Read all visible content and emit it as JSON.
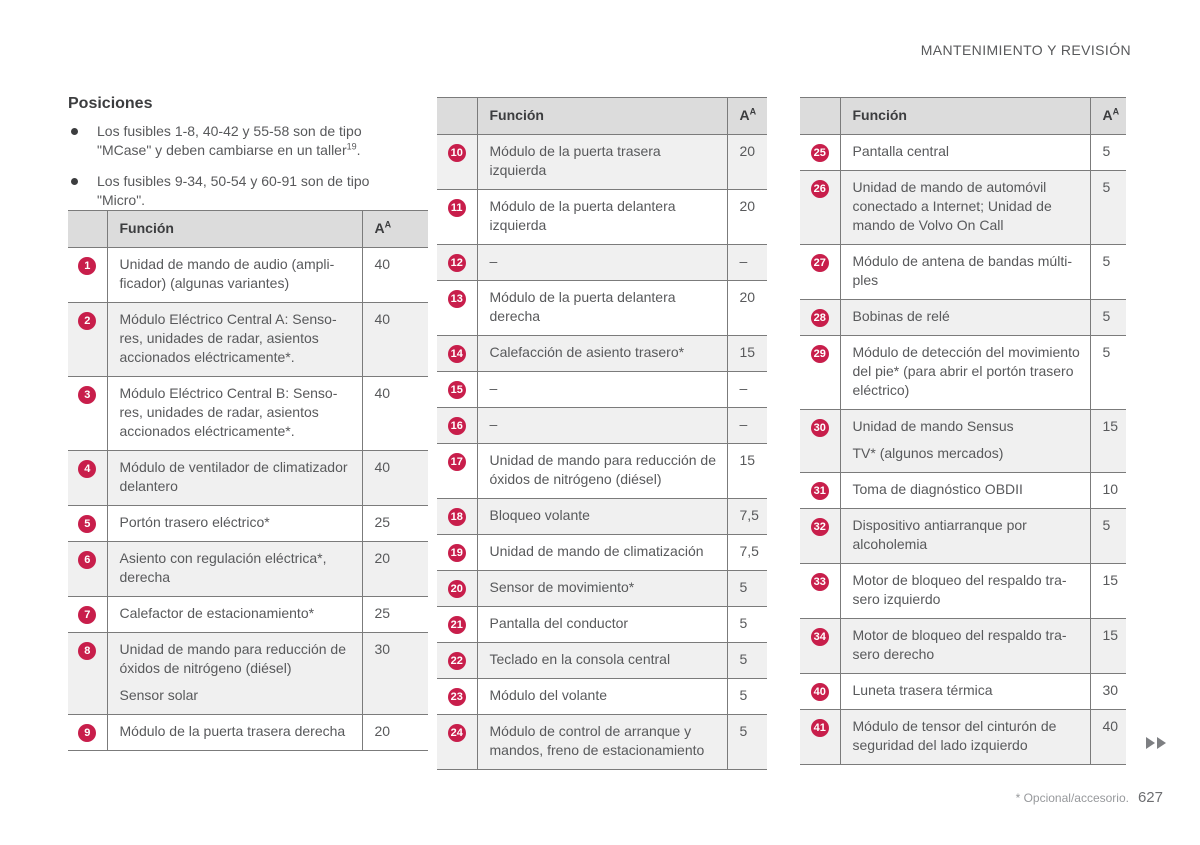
{
  "header": {
    "title": "MANTENIMIENTO Y REVISIÓN"
  },
  "intro": {
    "title": "Posiciones",
    "bullets": [
      {
        "text": "Los fusibles 1-8, 40-42 y 55-58 son de tipo \"MCase\" y deben cambiarse en un taller",
        "sup": "19",
        "suffix": "."
      },
      {
        "text": "Los fusibles 9-34, 50-54 y 60-91 son de tipo \"Micro\".",
        "sup": "",
        "suffix": ""
      }
    ]
  },
  "columns": {
    "funcion": "Función",
    "amp_letter": "A",
    "amp_sup": "A"
  },
  "tables": [
    {
      "altFirst": false,
      "rows": [
        {
          "num": "1",
          "paras": [
            "Unidad de mando de audio (ampli­ficador) (algunas variantes)"
          ],
          "amp": "40"
        },
        {
          "num": "2",
          "paras": [
            "Módulo Eléctrico Central A: Senso­res, unidades de radar, asientos accionados eléctricamente*."
          ],
          "amp": "40"
        },
        {
          "num": "3",
          "paras": [
            "Módulo Eléctrico Central B: Senso­res, unidades de radar, asientos accionados eléctricamente*."
          ],
          "amp": "40"
        },
        {
          "num": "4",
          "paras": [
            "Módulo de ventilador de climatiza­dor delantero"
          ],
          "amp": "40"
        },
        {
          "num": "5",
          "paras": [
            "Portón trasero eléctrico*"
          ],
          "amp": "25"
        },
        {
          "num": "6",
          "paras": [
            "Asiento con regulación eléctrica*, derecha"
          ],
          "amp": "20"
        },
        {
          "num": "7",
          "paras": [
            "Calefactor de estacionamiento*"
          ],
          "amp": "25"
        },
        {
          "num": "8",
          "paras": [
            "Unidad de mando para reducción de óxidos de nitrógeno (diésel)",
            "Sensor solar"
          ],
          "amp": "30"
        },
        {
          "num": "9",
          "paras": [
            "Módulo de la puerta trasera dere­cha"
          ],
          "amp": "20"
        }
      ]
    },
    {
      "altFirst": true,
      "rows": [
        {
          "num": "10",
          "paras": [
            "Módulo de la puerta trasera izquierda"
          ],
          "amp": "20"
        },
        {
          "num": "11",
          "paras": [
            "Módulo de la puerta delantera izquierda"
          ],
          "amp": "20"
        },
        {
          "num": "12",
          "paras": [
            "–"
          ],
          "amp": "–"
        },
        {
          "num": "13",
          "paras": [
            "Módulo de la puerta delantera derecha"
          ],
          "amp": "20"
        },
        {
          "num": "14",
          "paras": [
            "Calefacción de asiento trasero*"
          ],
          "amp": "15"
        },
        {
          "num": "15",
          "paras": [
            "–"
          ],
          "amp": "–"
        },
        {
          "num": "16",
          "paras": [
            "–"
          ],
          "amp": "–"
        },
        {
          "num": "17",
          "paras": [
            "Unidad de mando para reducción de óxidos de nitrógeno (diésel)"
          ],
          "amp": "15"
        },
        {
          "num": "18",
          "paras": [
            "Bloqueo volante"
          ],
          "amp": "7,5"
        },
        {
          "num": "19",
          "paras": [
            "Unidad de mando de climatización"
          ],
          "amp": "7,5"
        },
        {
          "num": "20",
          "paras": [
            "Sensor de movimiento*"
          ],
          "amp": "5"
        },
        {
          "num": "21",
          "paras": [
            "Pantalla del conductor"
          ],
          "amp": "5"
        },
        {
          "num": "22",
          "paras": [
            "Teclado en la consola central"
          ],
          "amp": "5"
        },
        {
          "num": "23",
          "paras": [
            "Módulo del volante"
          ],
          "amp": "5"
        },
        {
          "num": "24",
          "paras": [
            "Módulo de control de arranque y mandos, freno de estacionamiento"
          ],
          "amp": "5"
        }
      ]
    },
    {
      "altFirst": false,
      "rows": [
        {
          "num": "25",
          "paras": [
            "Pantalla central"
          ],
          "amp": "5"
        },
        {
          "num": "26",
          "paras": [
            "Unidad de mando de automóvil conectado a Internet; Unidad de mando de Volvo On Call"
          ],
          "amp": "5"
        },
        {
          "num": "27",
          "paras": [
            "Módulo de antena de bandas múlti­ples"
          ],
          "amp": "5"
        },
        {
          "num": "28",
          "paras": [
            "Bobinas de relé"
          ],
          "amp": "5"
        },
        {
          "num": "29",
          "paras": [
            "Módulo de detección del movi­miento del pie* (para abrir el portón trasero eléctrico)"
          ],
          "amp": "5"
        },
        {
          "num": "30",
          "paras": [
            "Unidad de mando Sensus",
            "TV* (algunos mercados)"
          ],
          "amp": "15"
        },
        {
          "num": "31",
          "paras": [
            "Toma de diagnóstico OBDII"
          ],
          "amp": "10"
        },
        {
          "num": "32",
          "paras": [
            "Dispositivo antiarranque por alcoholemia"
          ],
          "amp": "5"
        },
        {
          "num": "33",
          "paras": [
            "Motor de bloqueo del respaldo tra­sero izquierdo"
          ],
          "amp": "15"
        },
        {
          "num": "34",
          "paras": [
            "Motor de bloqueo del respaldo tra­sero derecho"
          ],
          "amp": "15"
        },
        {
          "num": "40",
          "paras": [
            "Luneta trasera térmica"
          ],
          "amp": "30"
        },
        {
          "num": "41",
          "paras": [
            "Módulo de tensor del cinturón de seguridad del lado izquierdo"
          ],
          "amp": "40"
        }
      ]
    }
  ],
  "footer": {
    "note": "* Opcional/accesorio.",
    "page": "627"
  },
  "colors": {
    "badge": "#c81e4b",
    "header-bg": "#dcdcdc",
    "stripe-bg": "#f0f0f0",
    "table-border": "#7b7b7b",
    "text": "#58595b"
  }
}
